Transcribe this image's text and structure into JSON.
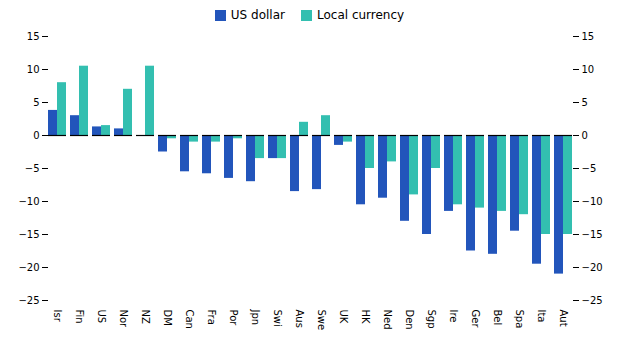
{
  "chart_data": {
    "type": "bar",
    "categories": [
      "Isr",
      "Fin",
      "US",
      "Nor",
      "NZ",
      "DM",
      "Can",
      "Fra",
      "Por",
      "Jpn",
      "Swi",
      "Aus",
      "Swe",
      "UK",
      "HK",
      "Ned",
      "Den",
      "Sgp",
      "Ire",
      "Ger",
      "Bel",
      "Spa",
      "Ita",
      "Aut"
    ],
    "series": [
      {
        "name": "US dollar",
        "color": "#2255bb",
        "values": [
          3.8,
          3.0,
          1.3,
          1.0,
          0.0,
          -2.5,
          -5.5,
          -5.8,
          -6.5,
          -7.0,
          -3.5,
          -8.5,
          -8.2,
          -1.5,
          -10.5,
          -9.5,
          -13.0,
          -15.0,
          -11.5,
          -17.5,
          -18.0,
          -14.5,
          -19.5,
          -21.0
        ]
      },
      {
        "name": "Local currency",
        "color": "#33bfb0",
        "values": [
          8.0,
          10.5,
          1.5,
          7.0,
          10.5,
          -0.5,
          -1.0,
          -1.0,
          -0.5,
          -3.5,
          -3.5,
          2.0,
          3.0,
          -1.0,
          -5.0,
          -4.0,
          -9.0,
          -5.0,
          -10.5,
          -11.0,
          -11.5,
          -12.0,
          -15.0,
          -15.0
        ]
      }
    ],
    "ylim": [
      -25,
      15
    ],
    "yticks": [
      -25,
      -20,
      -15,
      -10,
      -5,
      0,
      5,
      10,
      15
    ],
    "y2lim": [
      -25,
      15
    ],
    "y2ticks": [
      -25,
      -20,
      -15,
      -10,
      -5,
      0,
      5,
      10,
      15
    ],
    "grid": false,
    "legend": "top"
  }
}
